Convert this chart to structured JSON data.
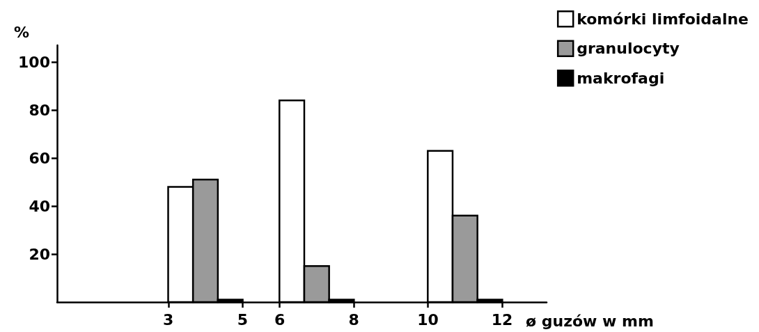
{
  "chart_data": {
    "type": "bar",
    "ylabel": "%",
    "xlabel": "ø guzów w mm",
    "xlim": [
      0,
      13.2
    ],
    "xticks": [
      3,
      5,
      6,
      8,
      10,
      12
    ],
    "ylim": [
      0,
      107
    ],
    "yticks": [
      20,
      40,
      60,
      80,
      100
    ],
    "series": [
      {
        "name": "komórki limfoidalne",
        "color": "#ffffff",
        "x": [
          3.33,
          6.33,
          10.33
        ],
        "values": [
          48,
          84,
          63
        ]
      },
      {
        "name": "granulocyty",
        "color": "#9a9a9a",
        "x": [
          4,
          7,
          11
        ],
        "values": [
          51,
          15,
          36
        ]
      },
      {
        "name": "makrofagi",
        "color": "#000000",
        "x": [
          4.67,
          7.67,
          11.67
        ],
        "values": [
          1,
          1,
          1
        ]
      }
    ],
    "legend": "top right",
    "grid": false
  }
}
